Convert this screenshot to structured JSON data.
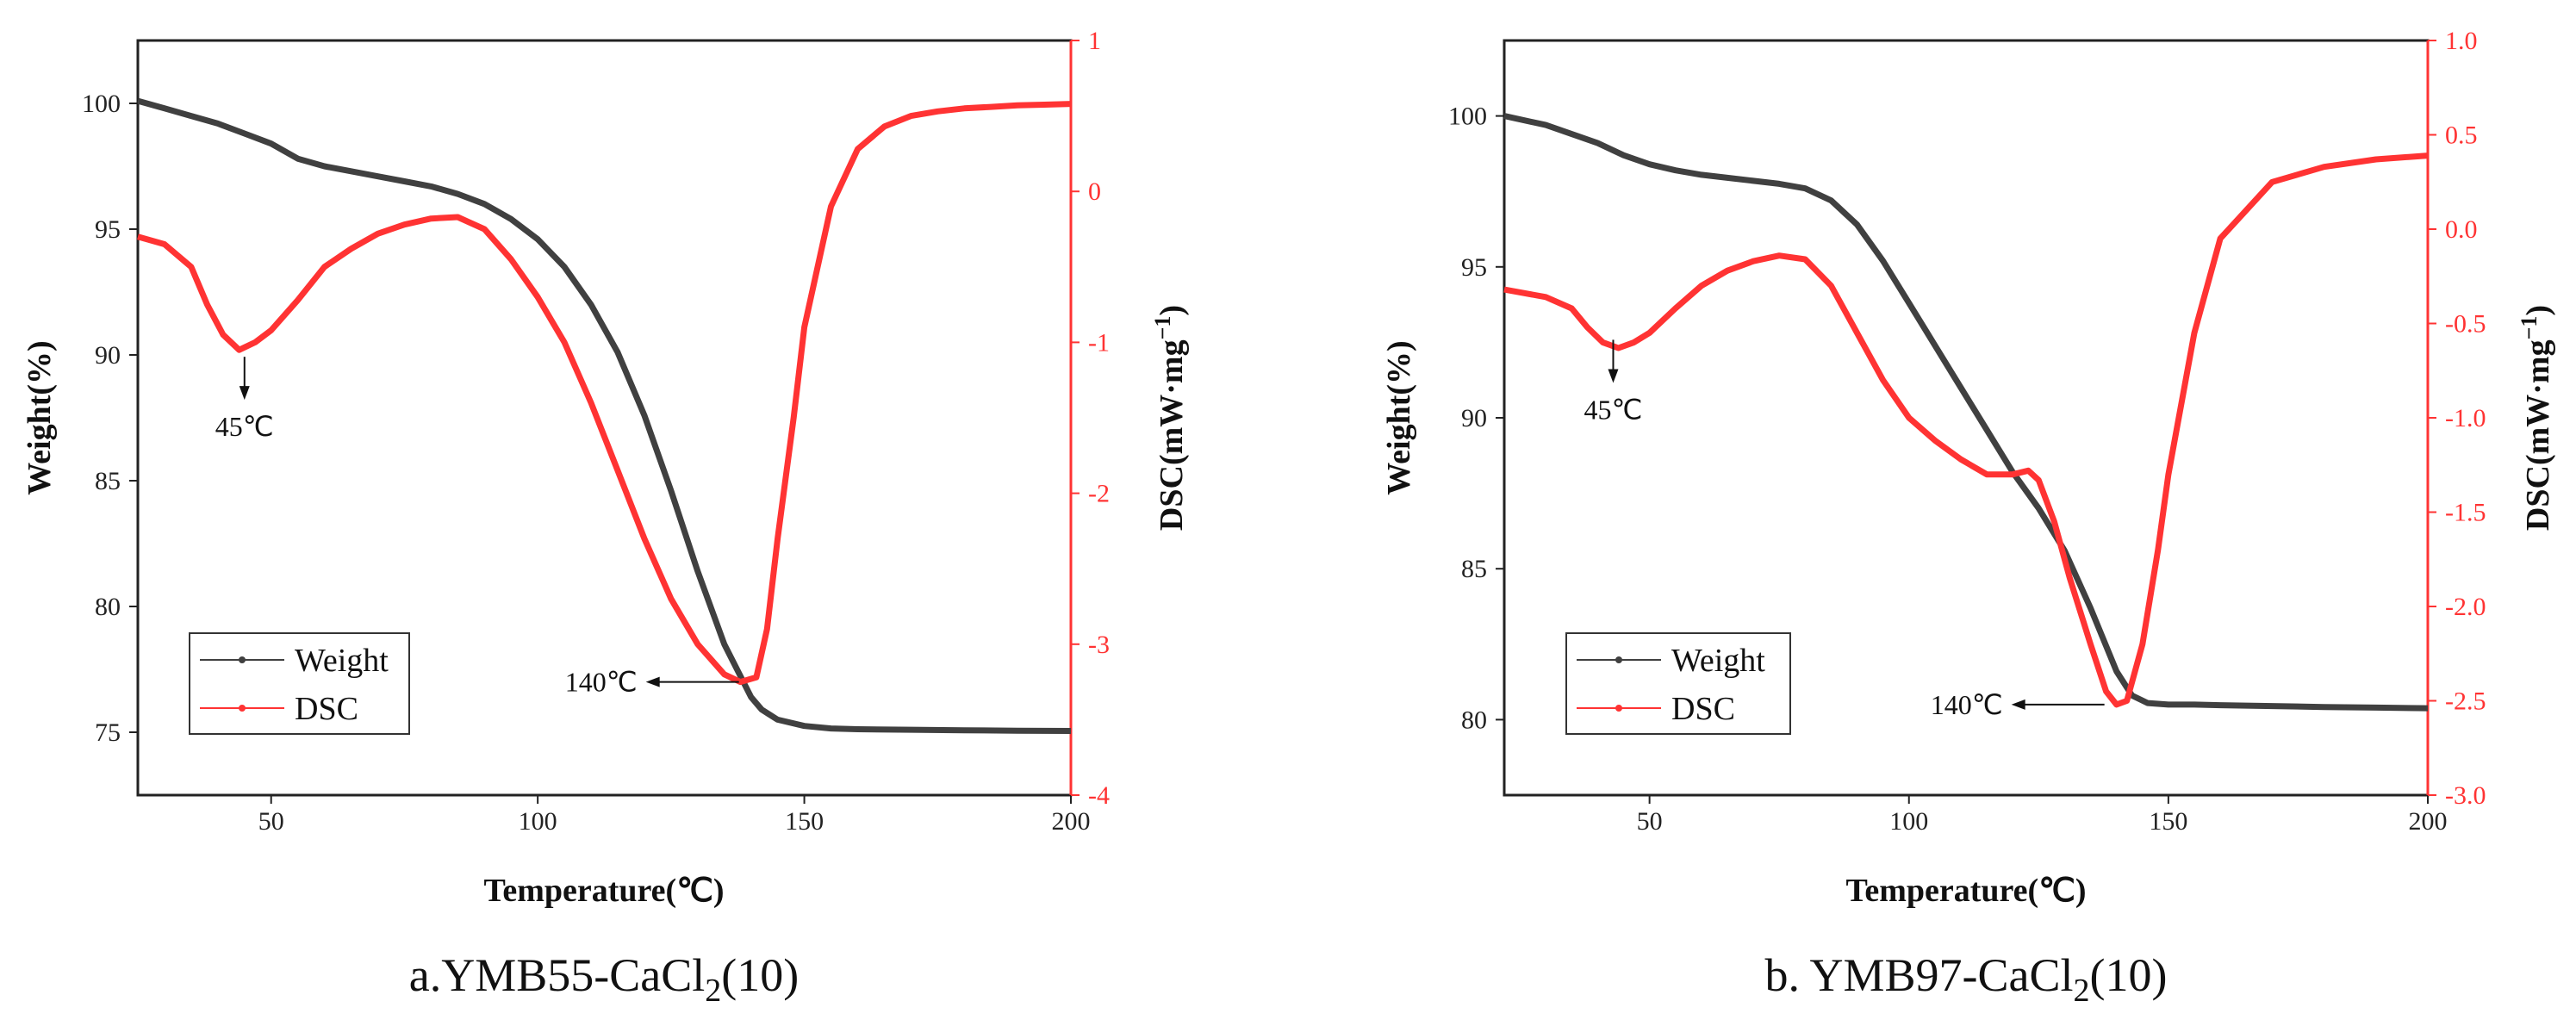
{
  "figure": {
    "colors": {
      "weight": "#404040",
      "dsc": "#ff3333",
      "axis": "#222222"
    }
  },
  "chart_data": [
    {
      "type": "line",
      "caption_prefix": "a.YMB55-CaCl",
      "caption_sub": "2",
      "caption_suffix": "(10)",
      "xlabel": "Temperature(℃)",
      "ylabel_left": "Weight(%)",
      "ylabel_right": "DSC(mW·mg",
      "ylabel_right_sup": "−1",
      "ylabel_right_close": ")",
      "xlim": [
        25,
        200
      ],
      "ylim_left": [
        72.5,
        102.5
      ],
      "ylim_right": [
        -4,
        1
      ],
      "x_ticks": [
        50,
        100,
        150,
        200
      ],
      "x_tick_labels": [
        "50",
        "100",
        "150",
        "200"
      ],
      "y_left_ticks": [
        75,
        80,
        85,
        90,
        95,
        100
      ],
      "y_left_tick_labels": [
        "75",
        "80",
        "85",
        "90",
        "95",
        "100"
      ],
      "y_right_ticks": [
        -4,
        -3,
        -2,
        -1,
        0,
        1
      ],
      "y_right_tick_labels": [
        "-4",
        "-3",
        "-2",
        "-1",
        "0",
        "1"
      ],
      "legend": [
        "Weight",
        "DSC"
      ],
      "annotations": [
        {
          "text": "45℃",
          "x": 45,
          "dsc": -1.05,
          "style": "down"
        },
        {
          "text": "140℃",
          "x": 140,
          "dsc": -3.25,
          "style": "left"
        }
      ],
      "series": [
        {
          "name": "Weight",
          "axis": "left",
          "x": [
            25,
            30,
            35,
            40,
            45,
            50,
            55,
            60,
            65,
            70,
            75,
            80,
            85,
            90,
            95,
            100,
            105,
            110,
            115,
            120,
            125,
            130,
            135,
            140,
            142,
            145,
            150,
            155,
            160,
            170,
            180,
            190,
            200
          ],
          "values": [
            100.1,
            99.8,
            99.5,
            99.2,
            98.8,
            98.4,
            97.8,
            97.5,
            97.3,
            97.1,
            96.9,
            96.7,
            96.4,
            96.0,
            95.4,
            94.6,
            93.5,
            92.0,
            90.1,
            87.6,
            84.6,
            81.4,
            78.5,
            76.4,
            75.9,
            75.5,
            75.25,
            75.15,
            75.12,
            75.1,
            75.08,
            75.06,
            75.05
          ]
        },
        {
          "name": "DSC",
          "axis": "right",
          "x": [
            25,
            30,
            35,
            38,
            41,
            44,
            47,
            50,
            55,
            60,
            65,
            70,
            75,
            80,
            85,
            90,
            95,
            100,
            105,
            110,
            115,
            120,
            125,
            130,
            135,
            138,
            141,
            143,
            145,
            148,
            150,
            155,
            160,
            165,
            170,
            175,
            180,
            185,
            190,
            195,
            200
          ],
          "values": [
            -0.3,
            -0.35,
            -0.5,
            -0.75,
            -0.95,
            -1.05,
            -1.0,
            -0.92,
            -0.72,
            -0.5,
            -0.38,
            -0.28,
            -0.22,
            -0.18,
            -0.17,
            -0.25,
            -0.45,
            -0.7,
            -1.0,
            -1.4,
            -1.85,
            -2.3,
            -2.7,
            -3.0,
            -3.2,
            -3.25,
            -3.22,
            -2.9,
            -2.3,
            -1.5,
            -0.9,
            -0.1,
            0.28,
            0.43,
            0.5,
            0.53,
            0.55,
            0.56,
            0.57,
            0.575,
            0.58
          ]
        }
      ]
    },
    {
      "type": "line",
      "caption_prefix": "b. YMB97-CaCl",
      "caption_sub": "2",
      "caption_suffix": "(10)",
      "xlabel": "Temperature(℃)",
      "ylabel_left": "Weight(%)",
      "ylabel_right": "DSC(mW·mg",
      "ylabel_right_sup": "−1",
      "ylabel_right_close": ")",
      "xlim": [
        22,
        200
      ],
      "ylim_left": [
        77.5,
        102.5
      ],
      "ylim_right": [
        -3,
        1
      ],
      "x_ticks": [
        50,
        100,
        150,
        200
      ],
      "x_tick_labels": [
        "50",
        "100",
        "150",
        "200"
      ],
      "y_left_ticks": [
        80,
        85,
        90,
        95,
        100
      ],
      "y_left_tick_labels": [
        "80",
        "85",
        "90",
        "95",
        "100"
      ],
      "y_right_ticks": [
        -3,
        -2.5,
        -2,
        -1.5,
        -1,
        -0.5,
        0,
        0.5,
        1
      ],
      "y_right_tick_labels": [
        "-3.0",
        "-2.5",
        "-2.0",
        "-1.5",
        "-1.0",
        "-0.5",
        "0.0",
        "0.5",
        "1.0"
      ],
      "legend": [
        "Weight",
        "DSC"
      ],
      "annotations": [
        {
          "text": "45℃",
          "x": 43,
          "dsc": -0.55,
          "style": "down"
        },
        {
          "text": "140℃",
          "x": 140,
          "dsc": -2.52,
          "style": "left"
        }
      ],
      "series": [
        {
          "name": "Weight",
          "axis": "left",
          "x": [
            22,
            30,
            35,
            40,
            45,
            50,
            55,
            60,
            65,
            70,
            75,
            80,
            85,
            90,
            95,
            100,
            105,
            110,
            115,
            120,
            125,
            130,
            135,
            140,
            143,
            146,
            150,
            155,
            160,
            170,
            180,
            190,
            200
          ],
          "values": [
            100.0,
            99.7,
            99.4,
            99.1,
            98.7,
            98.4,
            98.2,
            98.05,
            97.95,
            97.85,
            97.75,
            97.6,
            97.2,
            96.4,
            95.2,
            93.8,
            92.4,
            91.0,
            89.6,
            88.2,
            87.0,
            85.6,
            83.7,
            81.6,
            80.8,
            80.55,
            80.5,
            80.5,
            80.48,
            80.45,
            80.42,
            80.4,
            80.38
          ]
        },
        {
          "name": "DSC",
          "axis": "right",
          "x": [
            22,
            30,
            35,
            38,
            41,
            44,
            47,
            50,
            55,
            60,
            65,
            70,
            75,
            80,
            85,
            90,
            95,
            100,
            105,
            110,
            115,
            120,
            123,
            125,
            128,
            131,
            135,
            138,
            140,
            142,
            145,
            148,
            150,
            155,
            160,
            170,
            180,
            190,
            200
          ],
          "values": [
            -0.32,
            -0.36,
            -0.42,
            -0.52,
            -0.6,
            -0.63,
            -0.6,
            -0.55,
            -0.42,
            -0.3,
            -0.22,
            -0.17,
            -0.14,
            -0.16,
            -0.3,
            -0.55,
            -0.8,
            -1.0,
            -1.12,
            -1.22,
            -1.3,
            -1.3,
            -1.28,
            -1.33,
            -1.55,
            -1.85,
            -2.2,
            -2.45,
            -2.52,
            -2.5,
            -2.2,
            -1.7,
            -1.3,
            -0.55,
            -0.05,
            0.25,
            0.33,
            0.37,
            0.39
          ]
        }
      ]
    }
  ]
}
